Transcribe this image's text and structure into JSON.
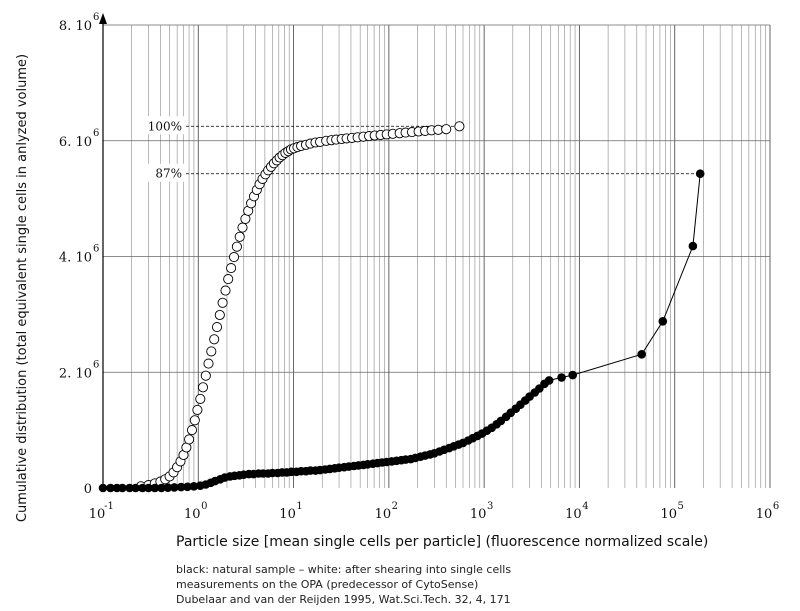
{
  "chart_data": {
    "type": "scatter",
    "title": "",
    "xlabel": "Particle size [mean single cells per particle] (fluorescence normalized scale)",
    "ylabel": "Cumulative distribution  (total equivalent single cells in anlyzed volume)",
    "x_scale": "log",
    "xlim": [
      0.1,
      1000000
    ],
    "ylim": [
      0,
      8000000
    ],
    "grid": true,
    "x_ticks": [
      {
        "base": "10",
        "exp": "-1"
      },
      {
        "base": "10",
        "exp": "0"
      },
      {
        "base": "10",
        "exp": "1"
      },
      {
        "base": "10",
        "exp": "2"
      },
      {
        "base": "10",
        "exp": "3"
      },
      {
        "base": "10",
        "exp": "4"
      },
      {
        "base": "10",
        "exp": "5"
      },
      {
        "base": "10",
        "exp": "6"
      }
    ],
    "y_ticks": [
      {
        "value": 0,
        "label": "0",
        "exp": ""
      },
      {
        "value": 2000000,
        "label": "2. 10",
        "exp": "6"
      },
      {
        "value": 4000000,
        "label": "4. 10",
        "exp": "6"
      },
      {
        "value": 6000000,
        "label": "6. 10",
        "exp": "6"
      },
      {
        "value": 8000000,
        "label": "8. 10",
        "exp": "6"
      }
    ],
    "annotations": [
      {
        "text": "100%",
        "x_end": 550,
        "y": 6250000
      },
      {
        "text": "87%",
        "x_end": 185000,
        "y": 5430000
      }
    ],
    "series": [
      {
        "marker": "open-circle",
        "connected": false,
        "points": [
          [
            0.25,
            30000
          ],
          [
            0.3,
            50000
          ],
          [
            0.35,
            80000
          ],
          [
            0.4,
            110000
          ],
          [
            0.45,
            150000
          ],
          [
            0.5,
            200000
          ],
          [
            0.55,
            270000
          ],
          [
            0.6,
            360000
          ],
          [
            0.65,
            460000
          ],
          [
            0.7,
            570000
          ],
          [
            0.75,
            700000
          ],
          [
            0.8,
            840000
          ],
          [
            0.86,
            1000000
          ],
          [
            0.92,
            1170000
          ],
          [
            0.98,
            1350000
          ],
          [
            1.05,
            1540000
          ],
          [
            1.12,
            1740000
          ],
          [
            1.2,
            1940000
          ],
          [
            1.28,
            2150000
          ],
          [
            1.37,
            2360000
          ],
          [
            1.47,
            2570000
          ],
          [
            1.57,
            2780000
          ],
          [
            1.68,
            2990000
          ],
          [
            1.8,
            3200000
          ],
          [
            1.93,
            3410000
          ],
          [
            2.06,
            3610000
          ],
          [
            2.21,
            3800000
          ],
          [
            2.37,
            3990000
          ],
          [
            2.54,
            4170000
          ],
          [
            2.72,
            4340000
          ],
          [
            2.91,
            4500000
          ],
          [
            3.12,
            4650000
          ],
          [
            3.34,
            4790000
          ],
          [
            3.58,
            4920000
          ],
          [
            3.84,
            5040000
          ],
          [
            4.11,
            5150000
          ],
          [
            4.4,
            5250000
          ],
          [
            4.72,
            5340000
          ],
          [
            5.06,
            5420000
          ],
          [
            5.42,
            5490000
          ],
          [
            5.8,
            5550000
          ],
          [
            6.22,
            5610000
          ],
          [
            6.66,
            5660000
          ],
          [
            7.14,
            5710000
          ],
          [
            7.65,
            5750000
          ],
          [
            8.2,
            5790000
          ],
          [
            8.8,
            5820000
          ],
          [
            9.4,
            5850000
          ],
          [
            10.1,
            5870000
          ],
          [
            11,
            5890000
          ],
          [
            12,
            5910000
          ],
          [
            13.5,
            5930000
          ],
          [
            15,
            5950000
          ],
          [
            17,
            5970000
          ],
          [
            19,
            5980000
          ],
          [
            22,
            6000000
          ],
          [
            25,
            6010000
          ],
          [
            28,
            6020000
          ],
          [
            32,
            6030000
          ],
          [
            36,
            6040000
          ],
          [
            41,
            6050000
          ],
          [
            47,
            6060000
          ],
          [
            54,
            6070000
          ],
          [
            62,
            6080000
          ],
          [
            71,
            6090000
          ],
          [
            82,
            6100000
          ],
          [
            95,
            6110000
          ],
          [
            110,
            6120000
          ],
          [
            130,
            6130000
          ],
          [
            150,
            6140000
          ],
          [
            175,
            6150000
          ],
          [
            205,
            6160000
          ],
          [
            240,
            6170000
          ],
          [
            280,
            6180000
          ],
          [
            330,
            6190000
          ],
          [
            400,
            6200000
          ],
          [
            550,
            6250000
          ]
        ]
      },
      {
        "marker": "filled-circle",
        "connected": true,
        "points": [
          [
            0.1,
            0
          ],
          [
            0.12,
            0
          ],
          [
            0.14,
            0
          ],
          [
            0.16,
            0
          ],
          [
            0.19,
            0
          ],
          [
            0.22,
            0
          ],
          [
            0.26,
            0
          ],
          [
            0.3,
            0
          ],
          [
            0.35,
            0
          ],
          [
            0.41,
            0
          ],
          [
            0.48,
            5000
          ],
          [
            0.56,
            10000
          ],
          [
            0.66,
            15000
          ],
          [
            0.77,
            20000
          ],
          [
            0.9,
            30000
          ],
          [
            1.05,
            40000
          ],
          [
            1.2,
            60000
          ],
          [
            1.35,
            90000
          ],
          [
            1.5,
            120000
          ],
          [
            1.7,
            150000
          ],
          [
            1.9,
            180000
          ],
          [
            2.15,
            200000
          ],
          [
            2.4,
            210000
          ],
          [
            2.7,
            220000
          ],
          [
            3.0,
            230000
          ],
          [
            3.4,
            240000
          ],
          [
            3.8,
            240000
          ],
          [
            4.3,
            250000
          ],
          [
            4.8,
            250000
          ],
          [
            5.4,
            250000
          ],
          [
            6.0,
            260000
          ],
          [
            6.8,
            260000
          ],
          [
            7.6,
            270000
          ],
          [
            8.5,
            270000
          ],
          [
            9.5,
            280000
          ],
          [
            10.7,
            280000
          ],
          [
            12,
            290000
          ],
          [
            13.5,
            290000
          ],
          [
            15,
            300000
          ],
          [
            17,
            300000
          ],
          [
            19,
            310000
          ],
          [
            21.5,
            320000
          ],
          [
            24,
            330000
          ],
          [
            27,
            340000
          ],
          [
            30,
            350000
          ],
          [
            34,
            360000
          ],
          [
            38,
            370000
          ],
          [
            43,
            380000
          ],
          [
            48,
            390000
          ],
          [
            54,
            400000
          ],
          [
            60,
            410000
          ],
          [
            68,
            420000
          ],
          [
            76,
            430000
          ],
          [
            85,
            440000
          ],
          [
            95,
            450000
          ],
          [
            107,
            460000
          ],
          [
            120,
            470000
          ],
          [
            135,
            480000
          ],
          [
            150,
            490000
          ],
          [
            170,
            500000
          ],
          [
            190,
            520000
          ],
          [
            215,
            540000
          ],
          [
            240,
            560000
          ],
          [
            270,
            580000
          ],
          [
            300,
            600000
          ],
          [
            340,
            630000
          ],
          [
            380,
            660000
          ],
          [
            430,
            690000
          ],
          [
            480,
            720000
          ],
          [
            540,
            750000
          ],
          [
            600,
            780000
          ],
          [
            680,
            820000
          ],
          [
            760,
            860000
          ],
          [
            850,
            900000
          ],
          [
            950,
            940000
          ],
          [
            1070,
            990000
          ],
          [
            1200,
            1040000
          ],
          [
            1350,
            1100000
          ],
          [
            1500,
            1160000
          ],
          [
            1700,
            1230000
          ],
          [
            1900,
            1300000
          ],
          [
            2150,
            1370000
          ],
          [
            2400,
            1440000
          ],
          [
            2700,
            1510000
          ],
          [
            3000,
            1580000
          ],
          [
            3400,
            1650000
          ],
          [
            3800,
            1720000
          ],
          [
            4300,
            1800000
          ],
          [
            4800,
            1860000
          ],
          [
            6500,
            1910000
          ],
          [
            8500,
            1950000
          ],
          [
            45000,
            2310000
          ],
          [
            75000,
            2880000
          ],
          [
            155000,
            4180000
          ],
          [
            185000,
            5430000
          ]
        ]
      }
    ]
  },
  "caption": {
    "line1": "black: natural sample – white: after shearing into single cells",
    "line2": "measurements on the OPA (predecessor of CytoSense)",
    "line3": "Dubelaar and van der Reijden 1995, Wat.Sci.Tech. 32, 4, 171"
  }
}
